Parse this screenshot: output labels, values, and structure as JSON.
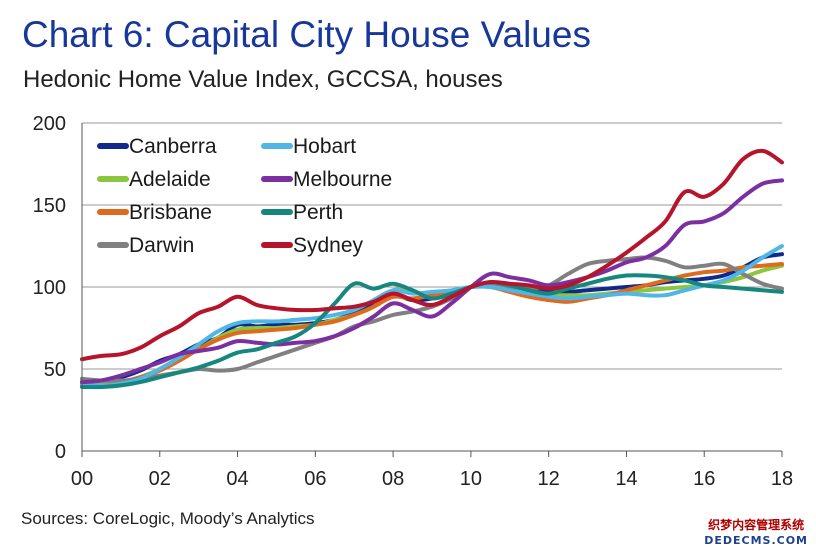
{
  "header": {
    "title": "Chart 6: Capital City House Values",
    "subtitle": "Hedonic Home Value Index, GCCSA, houses"
  },
  "footer": {
    "source": "Sources: CoreLogic, Moody’s Analytics"
  },
  "watermark": {
    "line1": "织梦内容管理系统",
    "line2": "DEDECMS.COM"
  },
  "chart_data": {
    "type": "line",
    "title": "",
    "xlabel": "",
    "ylabel": "",
    "xlim": [
      2000,
      2018
    ],
    "ylim": [
      0,
      200
    ],
    "x_ticks": [
      2000,
      2002,
      2004,
      2006,
      2008,
      2010,
      2012,
      2014,
      2016,
      2018
    ],
    "x_tick_labels": [
      "00",
      "02",
      "04",
      "06",
      "08",
      "10",
      "12",
      "14",
      "16",
      "18"
    ],
    "y_ticks": [
      0,
      50,
      100,
      150,
      200
    ],
    "y_tick_labels": [
      "0",
      "50",
      "100",
      "150",
      "200"
    ],
    "grid": "horizontal",
    "legend_position": "top-left",
    "legend_columns": 2,
    "series": [
      {
        "name": "Canberra",
        "color": "#0f2a8c",
        "points": [
          [
            2000,
            42
          ],
          [
            2000.5,
            43
          ],
          [
            2001,
            45
          ],
          [
            2001.5,
            49
          ],
          [
            2002,
            55
          ],
          [
            2002.5,
            59
          ],
          [
            2003,
            65
          ],
          [
            2003.5,
            69
          ],
          [
            2004,
            77
          ],
          [
            2004.5,
            76
          ],
          [
            2005,
            77
          ],
          [
            2005.5,
            77
          ],
          [
            2006,
            78
          ],
          [
            2006.5,
            80
          ],
          [
            2007,
            84
          ],
          [
            2007.5,
            89
          ],
          [
            2008,
            95
          ],
          [
            2008.5,
            92
          ],
          [
            2009,
            93
          ],
          [
            2009.5,
            96
          ],
          [
            2010,
            100
          ],
          [
            2010.5,
            101
          ],
          [
            2011,
            101
          ],
          [
            2011.5,
            100
          ],
          [
            2012,
            97
          ],
          [
            2012.5,
            97
          ],
          [
            2013,
            98
          ],
          [
            2013.5,
            99
          ],
          [
            2014,
            100
          ],
          [
            2014.5,
            101
          ],
          [
            2015,
            103
          ],
          [
            2015.5,
            104
          ],
          [
            2016,
            105
          ],
          [
            2016.5,
            107
          ],
          [
            2017,
            112
          ],
          [
            2017.5,
            118
          ],
          [
            2018,
            120
          ]
        ]
      },
      {
        "name": "Adelaide",
        "color": "#8cc63e",
        "points": [
          [
            2000,
            41
          ],
          [
            2000.5,
            41
          ],
          [
            2001,
            42
          ],
          [
            2001.5,
            45
          ],
          [
            2002,
            50
          ],
          [
            2002.5,
            56
          ],
          [
            2003,
            62
          ],
          [
            2003.5,
            69
          ],
          [
            2004,
            74
          ],
          [
            2004.5,
            75
          ],
          [
            2005,
            75
          ],
          [
            2005.5,
            76
          ],
          [
            2006,
            77
          ],
          [
            2006.5,
            80
          ],
          [
            2007,
            83
          ],
          [
            2007.5,
            88
          ],
          [
            2008,
            98
          ],
          [
            2008.5,
            97
          ],
          [
            2009,
            95
          ],
          [
            2009.5,
            97
          ],
          [
            2010,
            100
          ],
          [
            2010.5,
            101
          ],
          [
            2011,
            99
          ],
          [
            2011.5,
            97
          ],
          [
            2012,
            95
          ],
          [
            2012.5,
            95
          ],
          [
            2013,
            95
          ],
          [
            2013.5,
            96
          ],
          [
            2014,
            97
          ],
          [
            2014.5,
            98
          ],
          [
            2015,
            99
          ],
          [
            2015.5,
            100
          ],
          [
            2016,
            101
          ],
          [
            2016.5,
            103
          ],
          [
            2017,
            106
          ],
          [
            2017.5,
            110
          ],
          [
            2018,
            113
          ]
        ]
      },
      {
        "name": "Brisbane",
        "color": "#e06a1b",
        "points": [
          [
            2000,
            40
          ],
          [
            2000.5,
            40
          ],
          [
            2001,
            42
          ],
          [
            2001.5,
            45
          ],
          [
            2002,
            49
          ],
          [
            2002.5,
            55
          ],
          [
            2003,
            62
          ],
          [
            2003.5,
            68
          ],
          [
            2004,
            72
          ],
          [
            2004.5,
            73
          ],
          [
            2005,
            74
          ],
          [
            2005.5,
            75
          ],
          [
            2006,
            77
          ],
          [
            2006.5,
            79
          ],
          [
            2007,
            83
          ],
          [
            2007.5,
            88
          ],
          [
            2008,
            94
          ],
          [
            2008.5,
            93
          ],
          [
            2009,
            95
          ],
          [
            2009.5,
            97
          ],
          [
            2010,
            100
          ],
          [
            2010.5,
            100
          ],
          [
            2011,
            97
          ],
          [
            2011.5,
            94
          ],
          [
            2012,
            92
          ],
          [
            2012.5,
            91
          ],
          [
            2013,
            93
          ],
          [
            2013.5,
            95
          ],
          [
            2014,
            98
          ],
          [
            2014.5,
            101
          ],
          [
            2015,
            104
          ],
          [
            2015.5,
            107
          ],
          [
            2016,
            109
          ],
          [
            2016.5,
            110
          ],
          [
            2017,
            112
          ],
          [
            2017.5,
            113
          ],
          [
            2018,
            114
          ]
        ]
      },
      {
        "name": "Darwin",
        "color": "#808080",
        "points": [
          [
            2000,
            44
          ],
          [
            2000.5,
            43
          ],
          [
            2001,
            43
          ],
          [
            2001.5,
            44
          ],
          [
            2002,
            46
          ],
          [
            2002.5,
            48
          ],
          [
            2003,
            50
          ],
          [
            2003.5,
            49
          ],
          [
            2004,
            50
          ],
          [
            2004.5,
            54
          ],
          [
            2005,
            58
          ],
          [
            2005.5,
            62
          ],
          [
            2006,
            66
          ],
          [
            2006.5,
            70
          ],
          [
            2007,
            76
          ],
          [
            2007.5,
            79
          ],
          [
            2008,
            83
          ],
          [
            2008.5,
            85
          ],
          [
            2009,
            88
          ],
          [
            2009.5,
            93
          ],
          [
            2010,
            100
          ],
          [
            2010.5,
            101
          ],
          [
            2011,
            100
          ],
          [
            2011.5,
            99
          ],
          [
            2012,
            101
          ],
          [
            2012.5,
            108
          ],
          [
            2013,
            114
          ],
          [
            2013.5,
            116
          ],
          [
            2014,
            117
          ],
          [
            2014.5,
            118
          ],
          [
            2015,
            116
          ],
          [
            2015.5,
            112
          ],
          [
            2016,
            113
          ],
          [
            2016.5,
            114
          ],
          [
            2017,
            108
          ],
          [
            2017.5,
            102
          ],
          [
            2018,
            99
          ]
        ]
      },
      {
        "name": "Hobart",
        "color": "#4fb6e6",
        "points": [
          [
            2000,
            40
          ],
          [
            2000.5,
            40
          ],
          [
            2001,
            41
          ],
          [
            2001.5,
            44
          ],
          [
            2002,
            50
          ],
          [
            2002.5,
            57
          ],
          [
            2003,
            65
          ],
          [
            2003.5,
            73
          ],
          [
            2004,
            78
          ],
          [
            2004.5,
            79
          ],
          [
            2005,
            79
          ],
          [
            2005.5,
            80
          ],
          [
            2006,
            81
          ],
          [
            2006.5,
            83
          ],
          [
            2007,
            86
          ],
          [
            2007.5,
            92
          ],
          [
            2008,
            98
          ],
          [
            2008.5,
            96
          ],
          [
            2009,
            97
          ],
          [
            2009.5,
            98
          ],
          [
            2010,
            100
          ],
          [
            2010.5,
            100
          ],
          [
            2011,
            98
          ],
          [
            2011.5,
            96
          ],
          [
            2012,
            94
          ],
          [
            2012.5,
            93
          ],
          [
            2013,
            94
          ],
          [
            2013.5,
            95
          ],
          [
            2014,
            96
          ],
          [
            2014.5,
            95
          ],
          [
            2015,
            95
          ],
          [
            2015.5,
            98
          ],
          [
            2016,
            101
          ],
          [
            2016.5,
            104
          ],
          [
            2017,
            110
          ],
          [
            2017.5,
            118
          ],
          [
            2018,
            125
          ]
        ]
      },
      {
        "name": "Melbourne",
        "color": "#7b2fa0",
        "points": [
          [
            2000,
            42
          ],
          [
            2000.5,
            43
          ],
          [
            2001,
            46
          ],
          [
            2001.5,
            50
          ],
          [
            2002,
            54
          ],
          [
            2002.5,
            59
          ],
          [
            2003,
            61
          ],
          [
            2003.5,
            63
          ],
          [
            2004,
            67
          ],
          [
            2004.5,
            66
          ],
          [
            2005,
            65
          ],
          [
            2005.5,
            66
          ],
          [
            2006,
            67
          ],
          [
            2006.5,
            70
          ],
          [
            2007,
            75
          ],
          [
            2007.5,
            82
          ],
          [
            2008,
            90
          ],
          [
            2008.5,
            86
          ],
          [
            2009,
            82
          ],
          [
            2009.5,
            90
          ],
          [
            2010,
            100
          ],
          [
            2010.5,
            108
          ],
          [
            2011,
            106
          ],
          [
            2011.5,
            104
          ],
          [
            2012,
            101
          ],
          [
            2012.5,
            103
          ],
          [
            2013,
            106
          ],
          [
            2013.5,
            110
          ],
          [
            2014,
            115
          ],
          [
            2014.5,
            118
          ],
          [
            2015,
            125
          ],
          [
            2015.5,
            138
          ],
          [
            2016,
            140
          ],
          [
            2016.5,
            145
          ],
          [
            2017,
            155
          ],
          [
            2017.5,
            163
          ],
          [
            2018,
            165
          ]
        ]
      },
      {
        "name": "Perth",
        "color": "#16877f",
        "points": [
          [
            2000,
            39
          ],
          [
            2000.5,
            39
          ],
          [
            2001,
            40
          ],
          [
            2001.5,
            42
          ],
          [
            2002,
            45
          ],
          [
            2002.5,
            48
          ],
          [
            2003,
            51
          ],
          [
            2003.5,
            55
          ],
          [
            2004,
            60
          ],
          [
            2004.5,
            62
          ],
          [
            2005,
            66
          ],
          [
            2005.5,
            70
          ],
          [
            2006,
            78
          ],
          [
            2006.5,
            90
          ],
          [
            2007,
            102
          ],
          [
            2007.5,
            99
          ],
          [
            2008,
            102
          ],
          [
            2008.5,
            98
          ],
          [
            2009,
            93
          ],
          [
            2009.5,
            96
          ],
          [
            2010,
            100
          ],
          [
            2010.5,
            103
          ],
          [
            2011,
            101
          ],
          [
            2011.5,
            98
          ],
          [
            2012,
            96
          ],
          [
            2012.5,
            99
          ],
          [
            2013,
            102
          ],
          [
            2013.5,
            105
          ],
          [
            2014,
            107
          ],
          [
            2014.5,
            107
          ],
          [
            2015,
            106
          ],
          [
            2015.5,
            104
          ],
          [
            2016,
            101
          ],
          [
            2016.5,
            100
          ],
          [
            2017,
            99
          ],
          [
            2017.5,
            98
          ],
          [
            2018,
            97
          ]
        ]
      },
      {
        "name": "Sydney",
        "color": "#b5142b",
        "points": [
          [
            2000,
            56
          ],
          [
            2000.5,
            58
          ],
          [
            2001,
            59
          ],
          [
            2001.5,
            63
          ],
          [
            2002,
            70
          ],
          [
            2002.5,
            76
          ],
          [
            2003,
            84
          ],
          [
            2003.5,
            88
          ],
          [
            2004,
            94
          ],
          [
            2004.5,
            89
          ],
          [
            2005,
            87
          ],
          [
            2005.5,
            86
          ],
          [
            2006,
            86
          ],
          [
            2006.5,
            87
          ],
          [
            2007,
            88
          ],
          [
            2007.5,
            91
          ],
          [
            2008,
            96
          ],
          [
            2008.5,
            92
          ],
          [
            2009,
            89
          ],
          [
            2009.5,
            94
          ],
          [
            2010,
            100
          ],
          [
            2010.5,
            103
          ],
          [
            2011,
            102
          ],
          [
            2011.5,
            101
          ],
          [
            2012,
            99
          ],
          [
            2012.5,
            101
          ],
          [
            2013,
            106
          ],
          [
            2013.5,
            113
          ],
          [
            2014,
            121
          ],
          [
            2014.5,
            130
          ],
          [
            2015,
            140
          ],
          [
            2015.5,
            158
          ],
          [
            2016,
            155
          ],
          [
            2016.5,
            163
          ],
          [
            2017,
            178
          ],
          [
            2017.5,
            183
          ],
          [
            2018,
            176
          ]
        ]
      }
    ]
  }
}
